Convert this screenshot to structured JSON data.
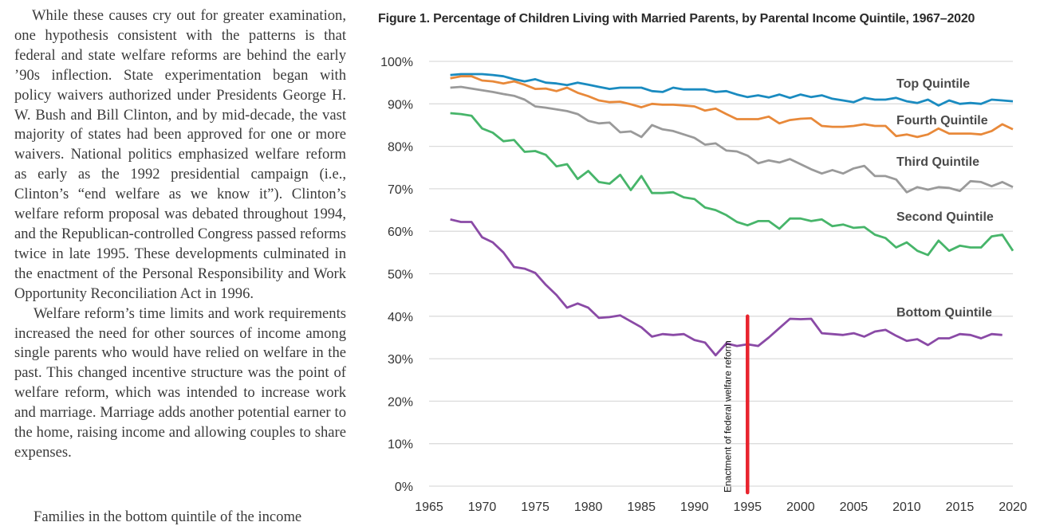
{
  "article": {
    "paragraphs": [
      "While these causes cry out for greater examination, one hypothesis consistent with the patterns is that federal and state welfare reforms are behind the early ’90s inflection. State experimentation began with policy waivers authorized under Presidents George H. W. Bush and Bill Clinton, and by mid-decade, the vast majority of states had been approved for one or more waivers. National politics emphasized welfare reform as early as the 1992 presidential campaign (i.e., Clinton’s “end welfare as we know it”). Clinton’s welfare reform proposal was debated throughout 1994, and the Republican-controlled Congress passed reforms twice in late 1995. These developments culminated in the enactment of the Personal Responsibility and Work Opportunity Reconciliation Act in 1996.",
      "Welfare reform’s time limits and work requirements increased the need for other sources of income among single parents who would have relied on welfare in the past. This changed incentive structure was the point of welfare reform, which was intended to increase work and marriage. Marriage adds another potential earner to the home, raising income and allowing couples to share expenses."
    ],
    "cut_line": "Families in the bottom quintile of the income"
  },
  "figure": {
    "title": "Figure 1. Percentage of Children Living with Married Parents, by Parental Income Quintile, 1967–2020"
  },
  "chart_data": {
    "type": "line",
    "title": "Figure 1. Percentage of Children Living with Married Parents, by Parental Income Quintile, 1967–2020",
    "xlabel": "",
    "ylabel": "",
    "xlim": [
      1965,
      2020
    ],
    "ylim": [
      0,
      100
    ],
    "x_ticks": [
      1965,
      1970,
      1975,
      1980,
      1985,
      1990,
      1995,
      2000,
      2005,
      2010,
      2015,
      2020
    ],
    "x_tick_labels": [
      "1965",
      "1970",
      "1975",
      "1980",
      "1985",
      "1990",
      "1995",
      "2000",
      "2005",
      "2010",
      "2015",
      "2020"
    ],
    "y_ticks": [
      0,
      10,
      20,
      30,
      40,
      50,
      60,
      70,
      80,
      90,
      100
    ],
    "y_tick_labels": [
      "0%",
      "10%",
      "20%",
      "30%",
      "40%",
      "50%",
      "60%",
      "70%",
      "80%",
      "90%",
      "100%"
    ],
    "grid": "horizontal",
    "x": [
      1967,
      1968,
      1969,
      1970,
      1971,
      1972,
      1973,
      1974,
      1975,
      1976,
      1977,
      1978,
      1979,
      1980,
      1981,
      1982,
      1983,
      1984,
      1985,
      1986,
      1987,
      1988,
      1989,
      1990,
      1991,
      1992,
      1993,
      1994,
      1995,
      1996,
      1997,
      1998,
      1999,
      2000,
      2001,
      2002,
      2003,
      2004,
      2005,
      2006,
      2007,
      2008,
      2009,
      2010,
      2011,
      2012,
      2013,
      2014,
      2015,
      2016,
      2017,
      2018,
      2019,
      2020
    ],
    "series": [
      {
        "name": "Top Quintile",
        "color": "#1a8bc0",
        "values": [
          96.8,
          97.0,
          97.0,
          97.0,
          96.8,
          96.5,
          95.8,
          95.3,
          95.8,
          95.0,
          94.8,
          94.4,
          95.0,
          94.5,
          94.0,
          93.5,
          93.8,
          93.8,
          93.8,
          93.0,
          92.8,
          93.8,
          93.4,
          93.4,
          93.4,
          92.8,
          93.0,
          92.2,
          91.6,
          92.0,
          91.5,
          92.2,
          91.4,
          92.2,
          91.6,
          92.0,
          91.2,
          90.8,
          90.4,
          91.4,
          91.0,
          91.0,
          91.4,
          90.6,
          90.2,
          91.0,
          89.6,
          90.8,
          90.0,
          90.2,
          90.0,
          91.0,
          90.8,
          90.6
        ]
      },
      {
        "name": "Fourth Quintile",
        "color": "#e8893a",
        "values": [
          96.0,
          96.5,
          96.5,
          95.5,
          95.3,
          94.8,
          95.3,
          94.5,
          93.5,
          93.6,
          93.0,
          93.8,
          92.6,
          91.8,
          90.8,
          90.4,
          90.5,
          89.9,
          89.2,
          90.0,
          89.8,
          89.8,
          89.6,
          89.4,
          88.4,
          88.9,
          87.6,
          86.4,
          86.4,
          86.4,
          87.0,
          85.4,
          86.2,
          86.5,
          86.6,
          84.8,
          84.6,
          84.6,
          84.8,
          85.2,
          84.8,
          84.8,
          82.4,
          82.8,
          82.2,
          82.8,
          84.2,
          83.0,
          83.0,
          83.0,
          82.8,
          83.6,
          85.2,
          84.0
        ]
      },
      {
        "name": "Third Quintile",
        "color": "#9a9a9a",
        "values": [
          93.8,
          94.0,
          93.6,
          93.2,
          92.8,
          92.3,
          91.9,
          91.0,
          89.4,
          89.1,
          88.7,
          88.3,
          87.6,
          86.0,
          85.4,
          85.6,
          83.3,
          83.5,
          82.2,
          85.0,
          84.0,
          83.6,
          82.8,
          82.0,
          80.4,
          80.7,
          79.0,
          78.8,
          77.8,
          76.0,
          76.7,
          76.2,
          77.0,
          75.8,
          74.6,
          73.6,
          74.4,
          73.6,
          74.8,
          75.4,
          73.0,
          73.0,
          72.2,
          69.2,
          70.4,
          69.8,
          70.4,
          70.2,
          69.5,
          71.8,
          71.6,
          70.6,
          71.6,
          70.4
        ]
      },
      {
        "name": "Second Quintile",
        "color": "#47b56a",
        "values": [
          87.8,
          87.6,
          87.2,
          84.2,
          83.2,
          81.2,
          81.5,
          78.7,
          78.9,
          78.0,
          75.3,
          75.8,
          72.3,
          74.2,
          71.6,
          71.2,
          73.3,
          69.7,
          73.0,
          69.0,
          69.0,
          69.2,
          68.0,
          67.6,
          65.6,
          65.0,
          63.8,
          62.2,
          61.4,
          62.4,
          62.4,
          60.6,
          63.0,
          63.0,
          62.4,
          62.8,
          61.2,
          61.6,
          60.8,
          61.0,
          59.2,
          58.4,
          56.2,
          57.4,
          55.4,
          54.4,
          57.8,
          55.4,
          56.6,
          56.2,
          56.2,
          58.8,
          59.2,
          55.4
        ]
      },
      {
        "name": "Bottom Quintile",
        "color": "#8a4aa6",
        "values": [
          62.8,
          62.2,
          62.2,
          58.6,
          57.4,
          55.0,
          51.6,
          51.2,
          50.2,
          47.4,
          45.0,
          42.0,
          43.0,
          42.0,
          39.6,
          39.8,
          40.2,
          38.8,
          37.4,
          35.2,
          35.8,
          35.6,
          35.8,
          34.4,
          33.8,
          30.8,
          33.6,
          33.0,
          33.4,
          33.0,
          35.0,
          37.2,
          39.4,
          39.3,
          39.4,
          36.0,
          35.8,
          35.6,
          36.0,
          35.2,
          36.4,
          36.8,
          35.4,
          34.2,
          34.6,
          33.2,
          34.8,
          34.8,
          35.8,
          35.6,
          34.8,
          35.8,
          35.6,
          null
        ]
      }
    ],
    "labels_on_chart": [
      "Top Quintile",
      "Fourth Quintile",
      "Third Quintile",
      "Second Quintile",
      "Bottom Quintile"
    ],
    "annotation": {
      "text": "Enactment of federal welfare reform",
      "x": 1995,
      "color": "#e8242e"
    }
  }
}
